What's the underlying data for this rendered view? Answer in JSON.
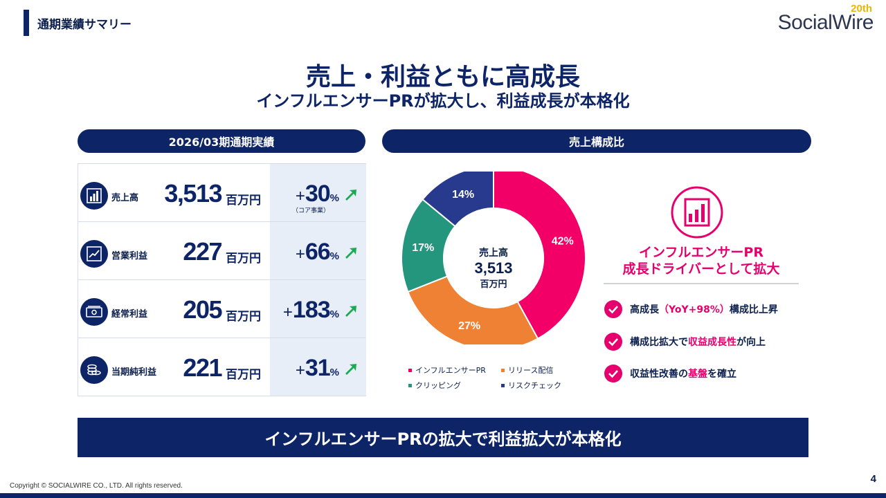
{
  "section_label": "通期業績サマリー",
  "logo": {
    "brand": "SocialWire",
    "anniversary": "20th"
  },
  "headline": "売上・利益ともに高成長",
  "subheadline": "インフルエンサーPRが拡大し、利益成長が本格化",
  "left_panel": {
    "title": "2026/03期通期実績",
    "rows": [
      {
        "icon": "bar-chart-icon",
        "label": "売上高",
        "value": "3,513",
        "unit": "百万円",
        "growth_sign": "+",
        "growth": "30",
        "growth_unit": "%",
        "note": "（コア事業）"
      },
      {
        "icon": "line-chart-icon",
        "label": "営業利益",
        "value": "227",
        "unit": "百万円",
        "growth_sign": "+",
        "growth": "66",
        "growth_unit": "%"
      },
      {
        "icon": "banknote-icon",
        "label": "経常利益",
        "value": "205",
        "unit": "百万円",
        "growth_sign": "+",
        "growth": "183",
        "growth_unit": "%"
      },
      {
        "icon": "coins-icon",
        "label": "当期純利益",
        "value": "221",
        "unit": "百万円",
        "growth_sign": "+",
        "growth": "31",
        "growth_unit": "%"
      }
    ]
  },
  "right_panel": {
    "title": "売上構成比",
    "center": {
      "label": "売上高",
      "value": "3,513",
      "unit": "百万円"
    },
    "driver": {
      "icon": "bar-chart-circle-icon",
      "title_line1": "インフルエンサーPR",
      "title_line2": "成長ドライバーとして拡大",
      "points": [
        {
          "pre": "高成長",
          "hl": "（YoY+98%）",
          "post": "構成比上昇"
        },
        {
          "pre": "構成比拡大で",
          "hl": "収益成長性",
          "post": "が向上"
        },
        {
          "pre": "収益性改善の",
          "hl": "基盤",
          "post": "を確立"
        }
      ]
    }
  },
  "chart_data": {
    "type": "pie",
    "donut": true,
    "categories": [
      "インフルエンサーPR",
      "リリース配信",
      "クリッピング",
      "リスクチェック"
    ],
    "values": [
      42,
      27,
      17,
      14
    ],
    "value_labels": [
      "42%",
      "27%",
      "17%",
      "14%"
    ],
    "colors": [
      "#f20068",
      "#ee8133",
      "#25967e",
      "#283a8e"
    ],
    "legend": "bottom"
  },
  "banner": "インフルエンサーPRの拡大で利益拡大が本格化",
  "copyright": "Copyright © SOCIALWIRE CO., LTD. All rights reserved.",
  "page_number": "4",
  "colors": {
    "navy": "#0d2466",
    "accent_pink": "#e6006e",
    "up_arrow": "#1bab55",
    "gold": "#e8b800"
  }
}
